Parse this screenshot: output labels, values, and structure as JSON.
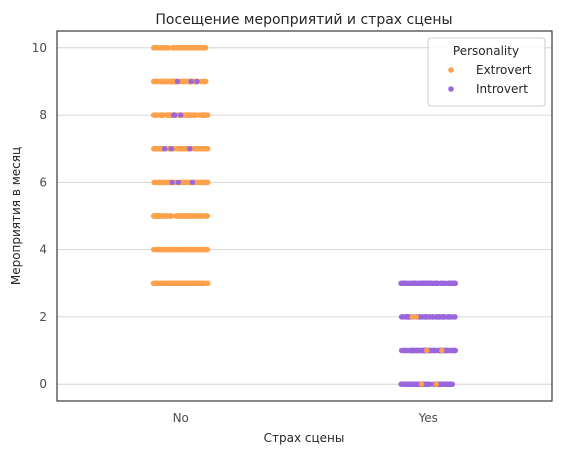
{
  "chart_data": {
    "type": "scatter",
    "subtype": "strip",
    "title": "Посещение мероприятий и страх сцены",
    "xlabel": "Страх сцены",
    "ylabel": "Мероприятия в месяц",
    "categories": [
      "No",
      "Yes"
    ],
    "ylim": [
      -0.5,
      10.5
    ],
    "yticks": [
      0,
      2,
      4,
      6,
      8,
      10
    ],
    "grid": "horizontal",
    "legend": {
      "title": "Personality",
      "position": "top-right",
      "entries": [
        "Extrovert",
        "Introvert"
      ]
    },
    "series": [
      {
        "name": "Extrovert",
        "color": "#FFA04A",
        "groups": {
          "No": [
            3,
            4,
            5,
            6,
            7,
            8,
            9,
            10
          ],
          "Yes": [
            0,
            1,
            2
          ]
        }
      },
      {
        "name": "Introvert",
        "color": "#9966DD",
        "groups": {
          "No": [
            6,
            7,
            8,
            9
          ],
          "Yes": [
            0,
            1,
            2,
            3
          ]
        }
      }
    ]
  }
}
